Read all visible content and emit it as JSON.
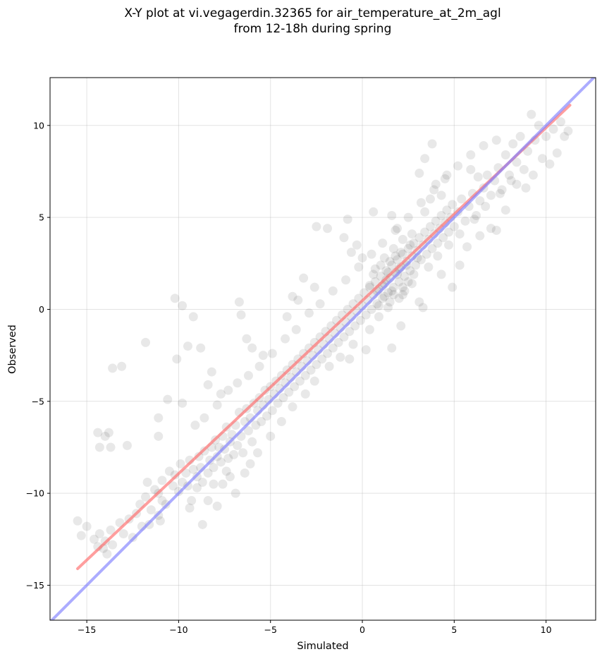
{
  "figure": {
    "title_line1": "X-Y plot at vi.vegagerdin.32365 for air_temperature_at_2m_agl",
    "title_line2": "from 12-18h during spring"
  },
  "chart_data": {
    "type": "scatter",
    "xlabel": "Simulated",
    "ylabel": "Observed",
    "xlim": [
      -17,
      12.7
    ],
    "ylim": [
      -16.9,
      12.6
    ],
    "xticks": [
      -15,
      -10,
      -5,
      0,
      5,
      10
    ],
    "yticks": [
      -15,
      -10,
      -5,
      0,
      5,
      10
    ],
    "xtick_labels": [
      "−15",
      "−10",
      "−5",
      "0",
      "5",
      "10"
    ],
    "ytick_labels": [
      "−15",
      "−10",
      "−5",
      "0",
      "5",
      "10"
    ],
    "grid": true,
    "point_color": "#000000",
    "point_alpha": 0.09,
    "points": [
      [
        -15.5,
        -11.5
      ],
      [
        -15.3,
        -12.3
      ],
      [
        -15.0,
        -11.8
      ],
      [
        -14.6,
        -12.5
      ],
      [
        -14.4,
        -12.9
      ],
      [
        -14.3,
        -12.2
      ],
      [
        -14.1,
        -13.0
      ],
      [
        -14.0,
        -12.6
      ],
      [
        -13.9,
        -13.3
      ],
      [
        -13.7,
        -12.0
      ],
      [
        -13.6,
        -12.8
      ],
      [
        -13.2,
        -11.6
      ],
      [
        -13.0,
        -12.2
      ],
      [
        -12.7,
        -11.4
      ],
      [
        -12.5,
        -12.4
      ],
      [
        -12.3,
        -11.1
      ],
      [
        -12.1,
        -10.6
      ],
      [
        -12.0,
        -11.8
      ],
      [
        -11.8,
        -10.2
      ],
      [
        -11.7,
        -9.4
      ],
      [
        -11.5,
        -10.9
      ],
      [
        -11.3,
        -9.8
      ],
      [
        -11.1,
        -10.0
      ],
      [
        -11.0,
        -11.5
      ],
      [
        -10.9,
        -9.3
      ],
      [
        -10.7,
        -10.6
      ],
      [
        -10.5,
        -8.8
      ],
      [
        -10.3,
        -9.6
      ],
      [
        -10.2,
        -9.0
      ],
      [
        -10.0,
        -9.9
      ],
      [
        -9.9,
        -8.4
      ],
      [
        -9.8,
        -9.4
      ],
      [
        -9.6,
        -8.9
      ],
      [
        -9.5,
        -9.6
      ],
      [
        -9.4,
        -8.2
      ],
      [
        -9.3,
        -10.4
      ],
      [
        -9.2,
        -8.7
      ],
      [
        -9.0,
        -9.1
      ],
      [
        -8.9,
        -8.0
      ],
      [
        -8.8,
        -8.6
      ],
      [
        -8.7,
        -9.4
      ],
      [
        -8.6,
        -7.7
      ],
      [
        -8.4,
        -8.9
      ],
      [
        -8.3,
        -8.2
      ],
      [
        -8.2,
        -7.5
      ],
      [
        -8.1,
        -8.6
      ],
      [
        -8.0,
        -7.1
      ],
      [
        -7.9,
        -8.0
      ],
      [
        -7.8,
        -7.5
      ],
      [
        -7.7,
        -8.3
      ],
      [
        -7.6,
        -6.9
      ],
      [
        -7.5,
        -7.6
      ],
      [
        -7.4,
        -6.4
      ],
      [
        -7.3,
        -8.1
      ],
      [
        -7.2,
        -7.2
      ],
      [
        -7.1,
        -6.8
      ],
      [
        -7.0,
        -7.9
      ],
      [
        -6.9,
        -6.3
      ],
      [
        -6.8,
        -7.4
      ],
      [
        -6.7,
        -5.6
      ],
      [
        -6.6,
        -6.9
      ],
      [
        -6.5,
        -7.8
      ],
      [
        -6.4,
        -6.1
      ],
      [
        -6.3,
        -5.4
      ],
      [
        -6.2,
        -6.6
      ],
      [
        -6.1,
        -5.9
      ],
      [
        -6.0,
        -7.2
      ],
      [
        -5.9,
        -5.1
      ],
      [
        -5.8,
        -6.3
      ],
      [
        -5.7,
        -5.5
      ],
      [
        -5.6,
        -4.8
      ],
      [
        -5.5,
        -6.1
      ],
      [
        -5.4,
        -5.2
      ],
      [
        -5.3,
        -4.4
      ],
      [
        -5.2,
        -5.8
      ],
      [
        -5.1,
        -4.9
      ],
      [
        -5.0,
        -4.2
      ],
      [
        -4.9,
        -5.5
      ],
      [
        -4.8,
        -4.6
      ],
      [
        -4.7,
        -3.9
      ],
      [
        -4.6,
        -5.1
      ],
      [
        -4.5,
        -4.3
      ],
      [
        -4.4,
        -3.6
      ],
      [
        -4.3,
        -4.8
      ],
      [
        -4.2,
        -4.0
      ],
      [
        -4.1,
        -3.3
      ],
      [
        -4.0,
        -4.5
      ],
      [
        -3.9,
        -3.7
      ],
      [
        -3.8,
        -3.0
      ],
      [
        -3.7,
        -4.2
      ],
      [
        -3.6,
        -3.4
      ],
      [
        -3.5,
        -2.7
      ],
      [
        -3.4,
        -3.9
      ],
      [
        -3.3,
        -3.1
      ],
      [
        -3.2,
        -2.4
      ],
      [
        -3.1,
        -3.6
      ],
      [
        -3.0,
        -2.8
      ],
      [
        -2.9,
        -2.1
      ],
      [
        -2.8,
        -3.3
      ],
      [
        -2.7,
        -2.5
      ],
      [
        -2.6,
        -1.8
      ],
      [
        -2.5,
        -3.0
      ],
      [
        -2.4,
        -2.2
      ],
      [
        -2.3,
        -1.5
      ],
      [
        -2.2,
        -2.7
      ],
      [
        -2.1,
        -1.9
      ],
      [
        -2.0,
        -1.2
      ],
      [
        -1.9,
        -2.4
      ],
      [
        -1.8,
        -1.6
      ],
      [
        -1.7,
        -0.9
      ],
      [
        -1.6,
        -2.1
      ],
      [
        -1.5,
        -1.3
      ],
      [
        -1.4,
        -0.6
      ],
      [
        -1.3,
        -1.8
      ],
      [
        -1.2,
        -1.0
      ],
      [
        -1.1,
        -0.3
      ],
      [
        -1.0,
        -1.5
      ],
      [
        -0.9,
        -0.7
      ],
      [
        -0.8,
        0.0
      ],
      [
        -0.7,
        -1.2
      ],
      [
        -0.6,
        -0.4
      ],
      [
        -0.5,
        0.3
      ],
      [
        -0.4,
        -0.9
      ],
      [
        -0.3,
        -0.1
      ],
      [
        -0.2,
        0.6
      ],
      [
        -0.1,
        -0.6
      ],
      [
        0.0,
        0.2
      ],
      [
        0.1,
        0.9
      ],
      [
        0.2,
        -0.3
      ],
      [
        0.3,
        0.5
      ],
      [
        0.4,
        1.2
      ],
      [
        0.5,
        0.0
      ],
      [
        0.6,
        0.8
      ],
      [
        0.7,
        1.5
      ],
      [
        0.8,
        0.3
      ],
      [
        0.9,
        1.1
      ],
      [
        1.0,
        1.8
      ],
      [
        1.1,
        0.6
      ],
      [
        1.2,
        1.4
      ],
      [
        1.3,
        2.1
      ],
      [
        1.4,
        0.9
      ],
      [
        1.5,
        1.7
      ],
      [
        1.6,
        2.4
      ],
      [
        1.7,
        1.2
      ],
      [
        1.8,
        2.0
      ],
      [
        1.9,
        2.7
      ],
      [
        2.0,
        1.5
      ],
      [
        2.1,
        2.3
      ],
      [
        2.2,
        3.0
      ],
      [
        2.3,
        1.8
      ],
      [
        2.4,
        2.6
      ],
      [
        2.5,
        3.3
      ],
      [
        2.6,
        2.1
      ],
      [
        2.7,
        2.9
      ],
      [
        2.8,
        3.6
      ],
      [
        2.9,
        2.4
      ],
      [
        3.0,
        3.2
      ],
      [
        3.1,
        3.9
      ],
      [
        3.2,
        2.7
      ],
      [
        3.3,
        3.5
      ],
      [
        3.4,
        4.2
      ],
      [
        3.5,
        3.0
      ],
      [
        3.6,
        3.8
      ],
      [
        3.7,
        4.5
      ],
      [
        3.8,
        3.3
      ],
      [
        3.9,
        4.1
      ],
      [
        4.0,
        4.8
      ],
      [
        4.1,
        3.6
      ],
      [
        4.2,
        4.4
      ],
      [
        4.3,
        5.1
      ],
      [
        4.4,
        3.9
      ],
      [
        4.5,
        4.7
      ],
      [
        4.6,
        5.4
      ],
      [
        4.7,
        4.2
      ],
      [
        4.8,
        5.0
      ],
      [
        4.9,
        5.7
      ],
      [
        5.0,
        4.5
      ],
      [
        5.2,
        5.3
      ],
      [
        5.4,
        6.0
      ],
      [
        5.6,
        4.8
      ],
      [
        5.8,
        5.6
      ],
      [
        6.0,
        6.3
      ],
      [
        6.2,
        5.1
      ],
      [
        6.4,
        5.9
      ],
      [
        6.6,
        6.6
      ],
      [
        6.8,
        7.3
      ],
      [
        7.0,
        6.2
      ],
      [
        7.2,
        7.0
      ],
      [
        7.4,
        7.7
      ],
      [
        7.6,
        6.5
      ],
      [
        7.8,
        8.4
      ],
      [
        8.0,
        7.3
      ],
      [
        8.2,
        9.0
      ],
      [
        8.4,
        8.0
      ],
      [
        8.6,
        9.4
      ],
      [
        8.8,
        7.6
      ],
      [
        9.0,
        8.6
      ],
      [
        9.2,
        10.6
      ],
      [
        9.4,
        9.2
      ],
      [
        9.6,
        10.0
      ],
      [
        9.8,
        8.2
      ],
      [
        10.0,
        9.4
      ],
      [
        10.2,
        7.9
      ],
      [
        10.4,
        9.8
      ],
      [
        10.6,
        8.5
      ],
      [
        10.8,
        10.2
      ],
      [
        11.0,
        9.4
      ],
      [
        11.2,
        9.7
      ],
      [
        -14.4,
        -6.7
      ],
      [
        -14.3,
        -7.5
      ],
      [
        -14.0,
        -6.9
      ],
      [
        -13.8,
        -6.7
      ],
      [
        -13.7,
        -7.5
      ],
      [
        -13.6,
        -3.2
      ],
      [
        -13.1,
        -3.1
      ],
      [
        -12.8,
        -7.4
      ],
      [
        -11.8,
        -1.8
      ],
      [
        -11.1,
        -5.9
      ],
      [
        -11.1,
        -6.9
      ],
      [
        -10.6,
        -4.9
      ],
      [
        -10.2,
        0.6
      ],
      [
        -10.1,
        -2.7
      ],
      [
        -9.8,
        0.2
      ],
      [
        -9.8,
        -5.1
      ],
      [
        -9.5,
        -2.0
      ],
      [
        -9.2,
        -0.4
      ],
      [
        -8.8,
        -2.1
      ],
      [
        -8.4,
        -4.1
      ],
      [
        -8.2,
        -3.4
      ],
      [
        -7.7,
        -4.6
      ],
      [
        -6.7,
        0.4
      ],
      [
        -6.6,
        -0.3
      ],
      [
        -6.3,
        -1.6
      ],
      [
        -6.0,
        -2.1
      ],
      [
        -5.4,
        -2.5
      ],
      [
        -4.1,
        -0.4
      ],
      [
        -3.8,
        0.7
      ],
      [
        -3.5,
        0.5
      ],
      [
        -3.2,
        1.7
      ],
      [
        -2.6,
        1.2
      ],
      [
        -2.5,
        4.5
      ],
      [
        -1.9,
        4.4
      ],
      [
        -1.0,
        3.9
      ],
      [
        -0.8,
        4.9
      ],
      [
        -0.6,
        3.1
      ],
      [
        -0.3,
        3.5
      ],
      [
        0.0,
        2.8
      ],
      [
        0.6,
        5.3
      ],
      [
        1.6,
        5.1
      ],
      [
        1.9,
        4.4
      ],
      [
        -0.7,
        -2.7
      ],
      [
        0.2,
        -2.2
      ],
      [
        1.6,
        -2.1
      ],
      [
        2.1,
        -0.9
      ],
      [
        3.1,
        0.4
      ],
      [
        3.3,
        0.1
      ],
      [
        4.3,
        1.9
      ],
      [
        4.9,
        1.2
      ],
      [
        5.3,
        2.4
      ],
      [
        5.7,
        3.4
      ],
      [
        6.4,
        4.0
      ],
      [
        7.0,
        4.4
      ],
      [
        7.3,
        4.3
      ],
      [
        7.8,
        5.4
      ],
      [
        8.4,
        6.8
      ],
      [
        8.9,
        6.6
      ],
      [
        9.3,
        7.3
      ],
      [
        -8.7,
        -11.7
      ],
      [
        -8.4,
        -10.4
      ],
      [
        -7.9,
        -10.7
      ],
      [
        -7.6,
        -9.5
      ],
      [
        -7.2,
        -9.1
      ],
      [
        -6.9,
        -10.0
      ],
      [
        -6.4,
        -8.9
      ],
      [
        -6.1,
        -8.4
      ],
      [
        -11.6,
        -11.7
      ],
      [
        -11.1,
        -11.2
      ],
      [
        -10.9,
        -10.4
      ],
      [
        -9.4,
        -10.8
      ],
      [
        -9.0,
        -9.7
      ],
      [
        -8.1,
        -9.5
      ],
      [
        -7.4,
        -8.8
      ],
      [
        -5.7,
        -7.8
      ],
      [
        -5.0,
        -6.9
      ],
      [
        -4.4,
        -6.1
      ],
      [
        -3.8,
        -5.3
      ],
      [
        -3.1,
        -4.6
      ],
      [
        -2.6,
        -3.9
      ],
      [
        -1.8,
        -3.1
      ],
      [
        -1.2,
        -2.6
      ],
      [
        -0.5,
        -1.9
      ],
      [
        0.4,
        -1.1
      ],
      [
        0.9,
        -0.4
      ],
      [
        1.4,
        0.1
      ],
      [
        2.2,
        0.8
      ],
      [
        2.7,
        1.4
      ],
      [
        3.6,
        2.3
      ],
      [
        4.1,
        2.9
      ],
      [
        4.7,
        3.5
      ],
      [
        5.3,
        4.1
      ],
      [
        6.1,
        4.9
      ],
      [
        6.7,
        5.6
      ],
      [
        7.5,
        6.3
      ],
      [
        8.1,
        7.0
      ],
      [
        -9.1,
        -6.3
      ],
      [
        -8.6,
        -5.9
      ],
      [
        -7.9,
        -5.2
      ],
      [
        -7.3,
        -4.4
      ],
      [
        -6.8,
        -4.0
      ],
      [
        -6.2,
        -3.6
      ],
      [
        -5.6,
        -3.1
      ],
      [
        -4.9,
        -2.4
      ],
      [
        -4.2,
        -1.6
      ],
      [
        -3.6,
        -1.1
      ],
      [
        -2.9,
        -0.2
      ],
      [
        -2.3,
        0.3
      ],
      [
        -1.6,
        1.0
      ],
      [
        -0.9,
        1.6
      ],
      [
        -0.2,
        2.3
      ],
      [
        0.5,
        3.0
      ],
      [
        1.1,
        3.6
      ],
      [
        1.8,
        4.3
      ],
      [
        2.5,
        5.0
      ],
      [
        3.2,
        5.8
      ],
      [
        3.9,
        6.5
      ],
      [
        4.5,
        7.1
      ],
      [
        5.2,
        7.8
      ],
      [
        5.9,
        8.4
      ],
      [
        6.6,
        8.9
      ],
      [
        7.3,
        9.2
      ],
      [
        0.4,
        1.3
      ],
      [
        0.6,
        1.9
      ],
      [
        0.8,
        1.0
      ],
      [
        1.0,
        2.4
      ],
      [
        1.2,
        0.7
      ],
      [
        1.3,
        1.6
      ],
      [
        1.5,
        2.6
      ],
      [
        1.7,
        0.8
      ],
      [
        1.9,
        1.9
      ],
      [
        2.1,
        3.1
      ],
      [
        2.3,
        1.0
      ],
      [
        2.4,
        2.4
      ],
      [
        2.6,
        3.5
      ],
      [
        2.8,
        1.9
      ],
      [
        3.0,
        2.8
      ],
      [
        0.7,
        2.2
      ],
      [
        1.1,
        1.3
      ],
      [
        1.4,
        2.0
      ],
      [
        1.6,
        1.0
      ],
      [
        1.8,
        2.9
      ],
      [
        2.0,
        2.2
      ],
      [
        2.2,
        1.2
      ],
      [
        0.9,
        0.2
      ],
      [
        1.2,
        2.8
      ],
      [
        1.5,
        0.4
      ],
      [
        1.7,
        3.3
      ],
      [
        2.0,
        0.6
      ],
      [
        2.2,
        3.8
      ],
      [
        2.5,
        1.5
      ],
      [
        2.7,
        4.1
      ],
      [
        3.4,
        5.3
      ],
      [
        3.7,
        6.0
      ],
      [
        4.0,
        6.8
      ],
      [
        4.3,
        6.2
      ],
      [
        4.6,
        7.3
      ],
      [
        3.1,
        7.4
      ],
      [
        3.4,
        8.2
      ],
      [
        3.8,
        9.0
      ],
      [
        5.9,
        7.6
      ],
      [
        6.3,
        7.2
      ]
    ],
    "series": [
      {
        "type": "line",
        "color": "#ff6a6a",
        "x": [
          -15.5,
          11.3
        ],
        "y": [
          -14.1,
          11.1
        ]
      },
      {
        "type": "line",
        "color": "#7f7fff",
        "x": [
          -17,
          12.7
        ],
        "y": [
          -17,
          12.7
        ]
      }
    ]
  }
}
